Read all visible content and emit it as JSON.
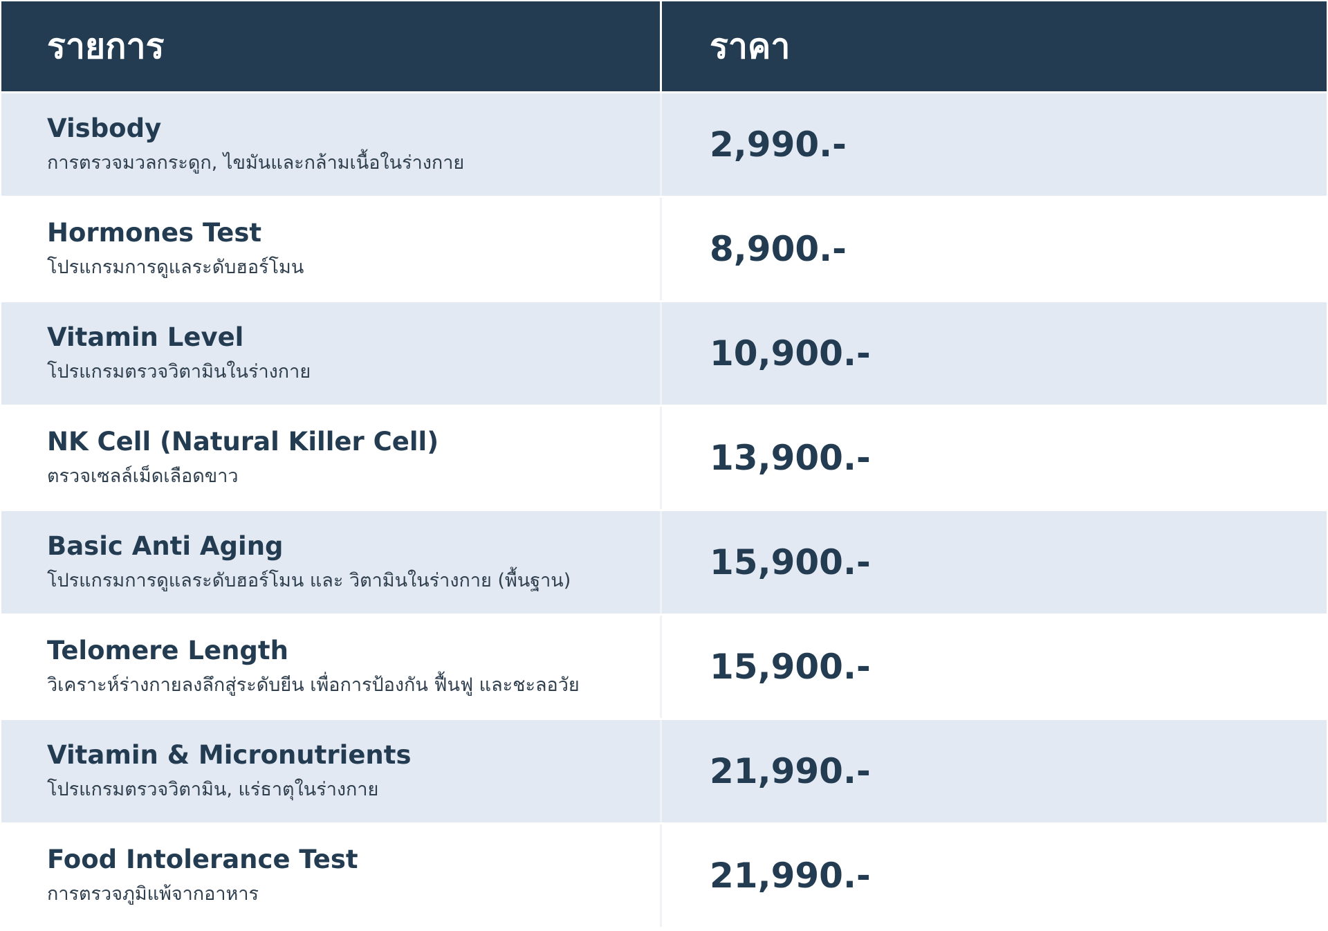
{
  "header": {
    "item_label": "รายการ",
    "price_label": "ราคา"
  },
  "rows": [
    {
      "name": "Visbody",
      "description": "การตรวจมวลกระดูก, ไขมันและกล้ามเนื้อในร่างกาย",
      "price": "2,990.-"
    },
    {
      "name": "Hormones Test",
      "description": "โปรแกรมการดูแลระดับฮอร์โมน",
      "price": "8,900.-"
    },
    {
      "name": "Vitamin Level",
      "description": "โปรแกรมตรวจวิตามินในร่างกาย",
      "price": "10,900.-"
    },
    {
      "name": "NK Cell (Natural Killer Cell)",
      "description": "ตรวจเซลล์เม็ดเลือดขาว",
      "price": "13,900.-"
    },
    {
      "name": "Basic Anti Aging",
      "description": "โปรแกรมการดูแลระดับฮอร์โมน และ วิตามินในร่างกาย (พื้นฐาน)",
      "price": "15,900.-"
    },
    {
      "name": "Telomere Length",
      "description": "วิเคราะห์ร่างกายลงลึกสู่ระดับยีน เพื่อการป้องกัน ฟื้นฟู และชะลอวัย",
      "price": "15,900.-"
    },
    {
      "name": "Vitamin & Micronutrients",
      "description": "โปรแกรมตรวจวิตามิน, แร่ธาตุในร่างกาย",
      "price": "21,990.-"
    },
    {
      "name": "Food Intolerance Test",
      "description": "การตรวจภูมิแพ้จากอาหาร",
      "price": "21,990.-"
    }
  ],
  "colors": {
    "header_bg": "#233c51",
    "alt_row_bg": "#e3e9f2",
    "text": "#233c51"
  }
}
